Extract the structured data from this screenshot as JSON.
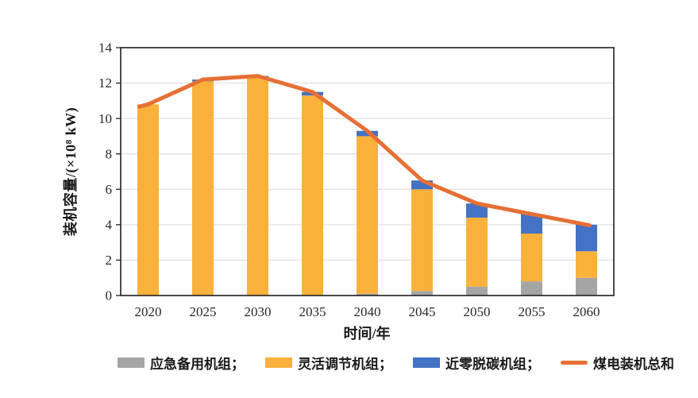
{
  "page": {
    "background": "#ffffff"
  },
  "chart_data": {
    "type": "bar",
    "subtype": "stacked-bars-with-total-line",
    "title": "",
    "xlabel": "时间/年",
    "ylabel": "装机容量/(×10⁸ kW)",
    "ylim": [
      0,
      14
    ],
    "yticks": [
      0,
      2,
      4,
      6,
      8,
      10,
      12,
      14
    ],
    "grid": true,
    "legend_position": "bottom",
    "categories": [
      "2020",
      "2025",
      "2030",
      "2035",
      "2040",
      "2045",
      "2050",
      "2055",
      "2060"
    ],
    "series": [
      {
        "name": "应急备用机组",
        "color": "#A5A5A5",
        "values": [
          0,
          0,
          0,
          0,
          0.1,
          0.25,
          0.5,
          0.8,
          1.0
        ]
      },
      {
        "name": "灵活调节机组",
        "color": "#F9B13C",
        "values": [
          10.8,
          12.1,
          12.3,
          11.3,
          8.9,
          5.75,
          3.9,
          2.7,
          1.5
        ]
      },
      {
        "name": "近零脱碳机组",
        "color": "#4472C4",
        "values": [
          0,
          0.1,
          0.1,
          0.2,
          0.3,
          0.5,
          0.8,
          1.1,
          1.5
        ]
      }
    ],
    "line_series": {
      "name": "煤电装机总和",
      "color": "#E66F35",
      "values": [
        10.8,
        12.2,
        12.4,
        11.5,
        9.3,
        6.5,
        5.2,
        4.6,
        4.0
      ]
    },
    "legend": [
      {
        "label": "应急备用机组；",
        "swatch": "rect",
        "color": "#A5A5A5"
      },
      {
        "label": "灵活调节机组；",
        "swatch": "rect",
        "color": "#F9B13C"
      },
      {
        "label": "近零脱碳机组；",
        "swatch": "rect",
        "color": "#4472C4"
      },
      {
        "label": "煤电装机总和",
        "swatch": "line",
        "color": "#E66F35"
      }
    ],
    "axis_color": "#1f1f1f",
    "grid_color": "#D9D9D9",
    "tick_label_color": "#262626"
  }
}
